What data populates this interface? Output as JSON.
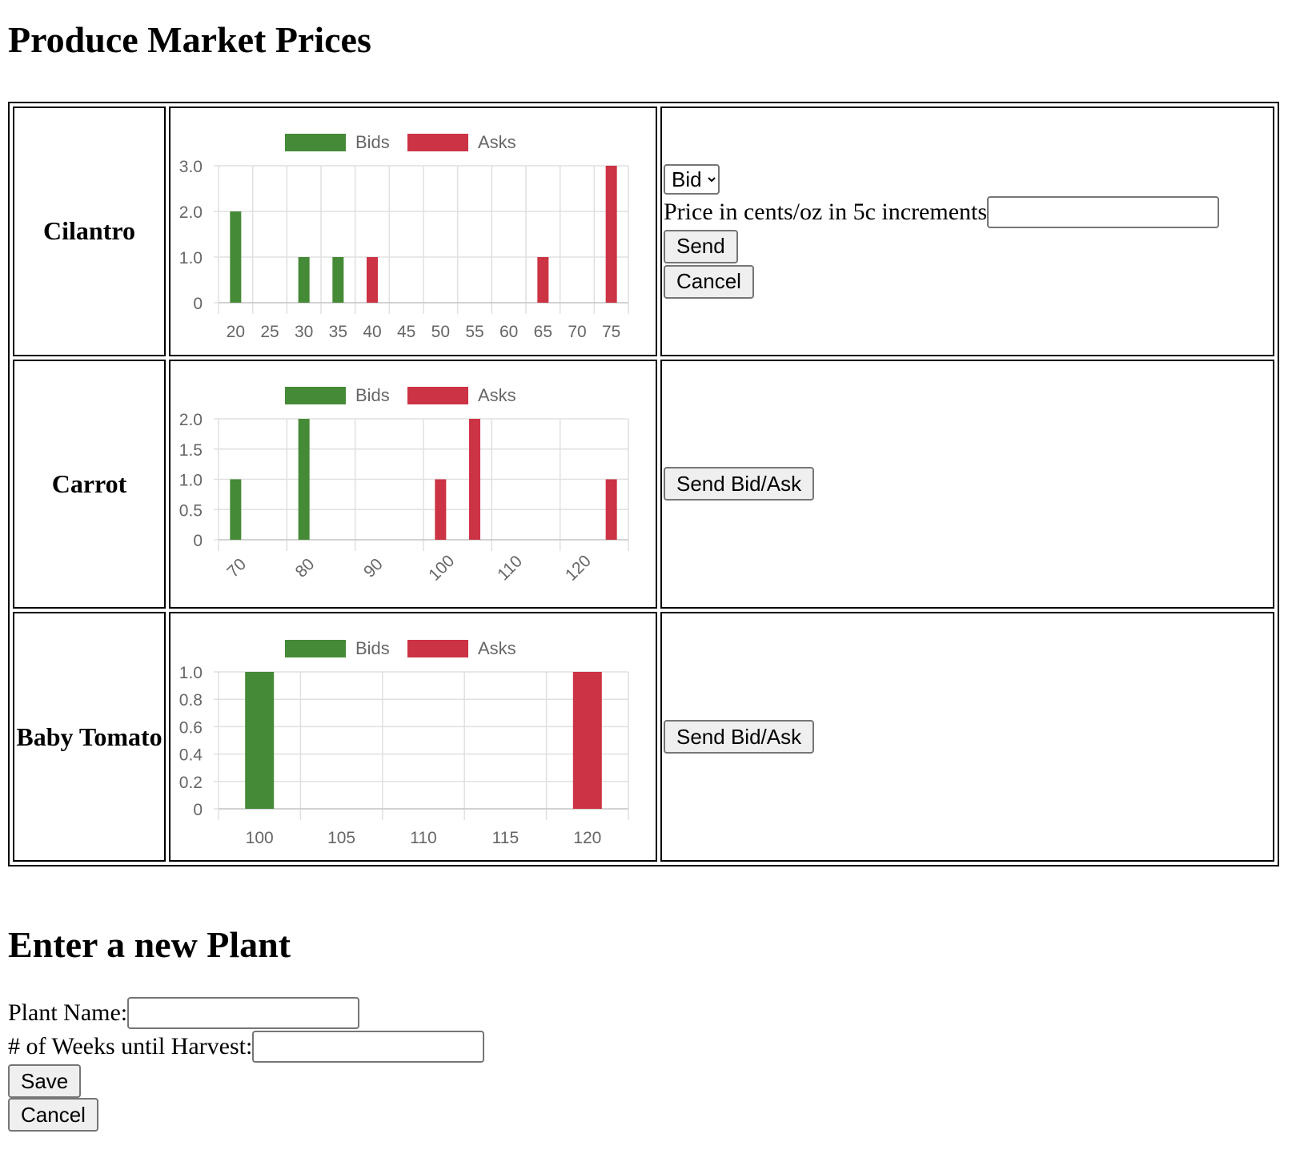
{
  "page": {
    "title": "Produce Market Prices",
    "new_plant_title": "Enter a new Plant"
  },
  "colors": {
    "bids": "#458a36",
    "asks": "#cc3344",
    "grid": "#e0e0e0",
    "axis_text": "#666666"
  },
  "rows": [
    {
      "name": "Cilantro"
    },
    {
      "name": "Carrot"
    },
    {
      "name": "Baby Tomato"
    }
  ],
  "bid_form": {
    "type_options": [
      "Bid"
    ],
    "type_selected": "Bid",
    "price_label": "Price in cents/oz in 5c increments",
    "price_value": "",
    "send_label": "Send",
    "cancel_label": "Cancel"
  },
  "send_bid_ask_label": "Send Bid/Ask",
  "new_plant": {
    "name_label": "Plant Name:",
    "name_value": "",
    "weeks_label": "# of Weeks until Harvest:",
    "weeks_value": "",
    "save_label": "Save",
    "cancel_label": "Cancel"
  },
  "chart_data": [
    {
      "type": "bar",
      "legend": [
        "Bids",
        "Asks"
      ],
      "legend_position": "top",
      "x": [
        20,
        25,
        30,
        35,
        40,
        45,
        50,
        55,
        60,
        65,
        70,
        75
      ],
      "x_tick_labels": [
        "20",
        "25",
        "30",
        "35",
        "40",
        "45",
        "50",
        "55",
        "60",
        "65",
        "70",
        "75"
      ],
      "series": [
        {
          "name": "Bids",
          "points": [
            [
              20,
              2
            ],
            [
              30,
              1
            ],
            [
              35,
              1
            ]
          ]
        },
        {
          "name": "Asks",
          "points": [
            [
              40,
              1
            ],
            [
              65,
              1
            ],
            [
              75,
              3
            ]
          ]
        }
      ],
      "y_ticks": [
        "0",
        "1.0",
        "2.0",
        "3.0"
      ],
      "ylim": [
        0,
        3
      ],
      "xlim": [
        17.5,
        77.5
      ],
      "grid": true
    },
    {
      "type": "bar",
      "legend": [
        "Bids",
        "Asks"
      ],
      "legend_position": "top",
      "x_tick_labels": [
        "70",
        "80",
        "90",
        "100",
        "110",
        "120"
      ],
      "x_ticks": [
        70,
        80,
        90,
        100,
        110,
        120
      ],
      "series": [
        {
          "name": "Bids",
          "points": [
            [
              70,
              1
            ],
            [
              80,
              2
            ]
          ]
        },
        {
          "name": "Asks",
          "points": [
            [
              100,
              1
            ],
            [
              105,
              2
            ],
            [
              125,
              1
            ]
          ]
        }
      ],
      "y_ticks": [
        "0",
        "0.5",
        "1.0",
        "1.5",
        "2.0"
      ],
      "ylim": [
        0,
        2
      ],
      "xlim": [
        67.5,
        127.5
      ],
      "x_labels_rotated": true,
      "grid": true
    },
    {
      "type": "bar",
      "legend": [
        "Bids",
        "Asks"
      ],
      "legend_position": "top",
      "x_tick_labels": [
        "100",
        "105",
        "110",
        "115",
        "120"
      ],
      "x_ticks": [
        100,
        105,
        110,
        115,
        120
      ],
      "series": [
        {
          "name": "Bids",
          "points": [
            [
              100,
              1
            ]
          ]
        },
        {
          "name": "Asks",
          "points": [
            [
              120,
              1
            ]
          ]
        }
      ],
      "y_ticks": [
        "0",
        "0.2",
        "0.4",
        "0.6",
        "0.8",
        "1.0"
      ],
      "ylim": [
        0,
        1
      ],
      "xlim": [
        97.5,
        122.5
      ],
      "grid": true
    }
  ]
}
